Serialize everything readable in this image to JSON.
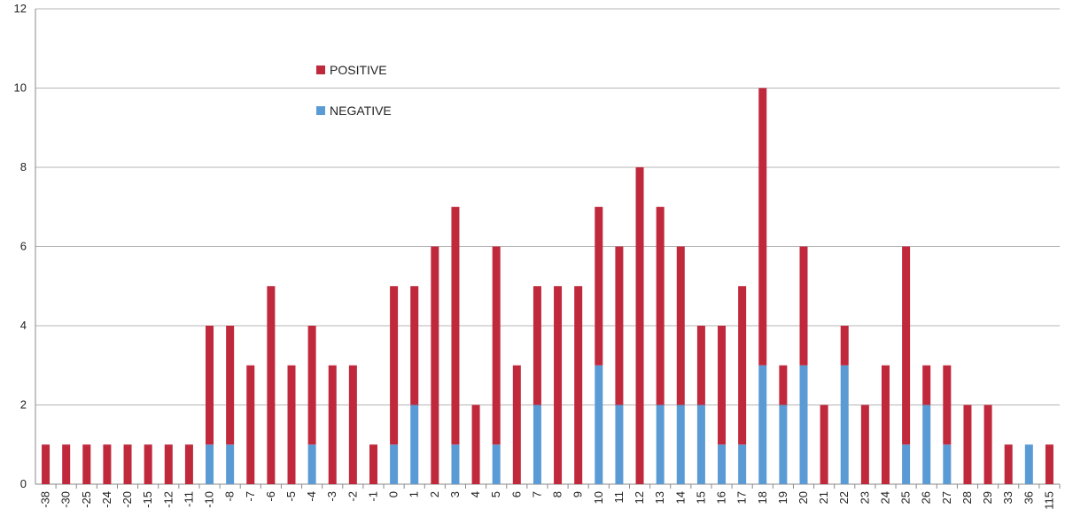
{
  "chart_data": {
    "type": "bar",
    "stacked": true,
    "categories": [
      "-38",
      "-30",
      "-25",
      "-24",
      "-20",
      "-15",
      "-12",
      "-11",
      "-10",
      "-8",
      "-7",
      "-6",
      "-5",
      "-4",
      "-3",
      "-2",
      "-1",
      "0",
      "1",
      "2",
      "3",
      "4",
      "5",
      "6",
      "7",
      "8",
      "9",
      "10",
      "11",
      "12",
      "13",
      "14",
      "15",
      "16",
      "17",
      "18",
      "19",
      "20",
      "21",
      "22",
      "23",
      "24",
      "25",
      "26",
      "27",
      "28",
      "29",
      "33",
      "36",
      "115"
    ],
    "series": [
      {
        "name": "NEGATIVE",
        "color": "#5b9bd5",
        "values": [
          0,
          0,
          0,
          0,
          0,
          0,
          0,
          0,
          1,
          1,
          0,
          0,
          0,
          1,
          0,
          0,
          0,
          1,
          2,
          0,
          1,
          0,
          1,
          0,
          2,
          0,
          0,
          3,
          2,
          0,
          2,
          2,
          2,
          1,
          1,
          3,
          2,
          3,
          0,
          3,
          0,
          0,
          1,
          2,
          1,
          0,
          0,
          0,
          1,
          0
        ]
      },
      {
        "name": "POSITIVE",
        "color": "#c0283c",
        "values": [
          1,
          1,
          1,
          1,
          1,
          1,
          1,
          1,
          3,
          3,
          3,
          5,
          3,
          3,
          3,
          3,
          1,
          4,
          3,
          6,
          6,
          2,
          5,
          3,
          3,
          5,
          5,
          4,
          4,
          8,
          5,
          4,
          2,
          3,
          4,
          7,
          1,
          3,
          2,
          1,
          2,
          3,
          5,
          1,
          2,
          2,
          2,
          1,
          0,
          1
        ]
      }
    ],
    "ylim": [
      0,
      12
    ],
    "yticks": [
      "0",
      "2",
      "4",
      "6",
      "8",
      "10",
      "12"
    ],
    "grid": true,
    "legend": {
      "placement": "top-left-inside",
      "order": [
        "POSITIVE",
        "NEGATIVE"
      ]
    },
    "title": "",
    "xlabel": "",
    "ylabel": ""
  }
}
